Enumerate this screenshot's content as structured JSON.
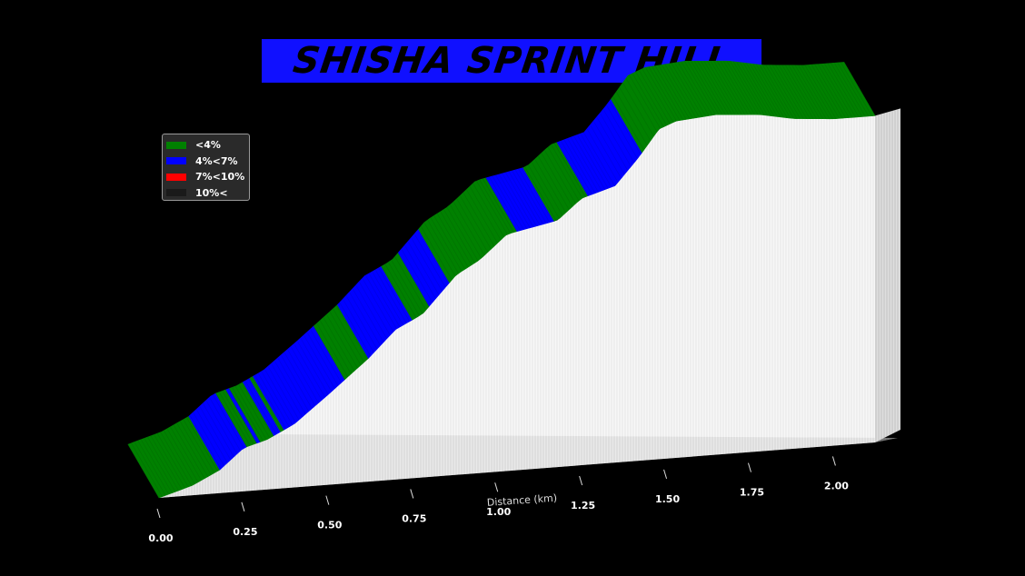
{
  "title": "SHISHA SPRINT HILL",
  "legend": [
    {
      "label": "<4%",
      "color": "#008000"
    },
    {
      "label": "4%<7%",
      "color": "#0000ff"
    },
    {
      "label": "7%<10%",
      "color": "#ff0000"
    },
    {
      "label": "10%<",
      "color": "#1a1a1a"
    }
  ],
  "chart_data": {
    "type": "area",
    "title": "SHISHA SPRINT HILL",
    "xlabel": "Distance (km)",
    "ylabel": "",
    "x_ticks": [
      "0.00",
      "0.25",
      "0.50",
      "0.75",
      "1.00",
      "1.25",
      "1.50",
      "1.75",
      "2.00"
    ],
    "xlim": [
      0,
      2.12
    ],
    "ylim": [
      0,
      110
    ],
    "gradient_classes": [
      "<4%",
      "4%<7%",
      "7%<10%",
      "10%<"
    ],
    "profile": [
      {
        "x": 0.0,
        "elevation": 0
      },
      {
        "x": 0.1,
        "elevation": 3
      },
      {
        "x": 0.18,
        "elevation": 7
      },
      {
        "x": 0.25,
        "elevation": 13
      },
      {
        "x": 0.32,
        "elevation": 15
      },
      {
        "x": 0.4,
        "elevation": 19
      },
      {
        "x": 0.5,
        "elevation": 27
      },
      {
        "x": 0.62,
        "elevation": 37
      },
      {
        "x": 0.7,
        "elevation": 45
      },
      {
        "x": 0.78,
        "elevation": 49
      },
      {
        "x": 0.88,
        "elevation": 60
      },
      {
        "x": 0.95,
        "elevation": 64
      },
      {
        "x": 1.03,
        "elevation": 71
      },
      {
        "x": 1.08,
        "elevation": 72
      },
      {
        "x": 1.18,
        "elevation": 74
      },
      {
        "x": 1.25,
        "elevation": 80
      },
      {
        "x": 1.35,
        "elevation": 83
      },
      {
        "x": 1.42,
        "elevation": 91
      },
      {
        "x": 1.48,
        "elevation": 99
      },
      {
        "x": 1.53,
        "elevation": 101
      },
      {
        "x": 1.65,
        "elevation": 102
      },
      {
        "x": 1.78,
        "elevation": 101
      },
      {
        "x": 1.88,
        "elevation": 99
      },
      {
        "x": 2.0,
        "elevation": 98
      },
      {
        "x": 2.12,
        "elevation": 98
      }
    ],
    "segments": [
      {
        "start": 0.0,
        "end": 0.18,
        "class": "<4%"
      },
      {
        "start": 0.18,
        "end": 0.26,
        "class": "4%<7%"
      },
      {
        "start": 0.26,
        "end": 0.29,
        "class": "<4%"
      },
      {
        "start": 0.29,
        "end": 0.3,
        "class": "4%<7%"
      },
      {
        "start": 0.3,
        "end": 0.34,
        "class": "<4%"
      },
      {
        "start": 0.34,
        "end": 0.36,
        "class": "4%<7%"
      },
      {
        "start": 0.36,
        "end": 0.37,
        "class": "<4%"
      },
      {
        "start": 0.37,
        "end": 0.55,
        "class": "4%<7%"
      },
      {
        "start": 0.55,
        "end": 0.62,
        "class": "<4%"
      },
      {
        "start": 0.62,
        "end": 0.75,
        "class": "4%<7%"
      },
      {
        "start": 0.75,
        "end": 0.8,
        "class": "<4%"
      },
      {
        "start": 0.8,
        "end": 0.86,
        "class": "4%<7%"
      },
      {
        "start": 0.86,
        "end": 1.06,
        "class": "<4%"
      },
      {
        "start": 1.06,
        "end": 1.17,
        "class": "4%<7%"
      },
      {
        "start": 1.17,
        "end": 1.27,
        "class": "<4%"
      },
      {
        "start": 1.27,
        "end": 1.43,
        "class": "4%<7%"
      },
      {
        "start": 1.43,
        "end": 2.12,
        "class": "<4%"
      }
    ]
  }
}
